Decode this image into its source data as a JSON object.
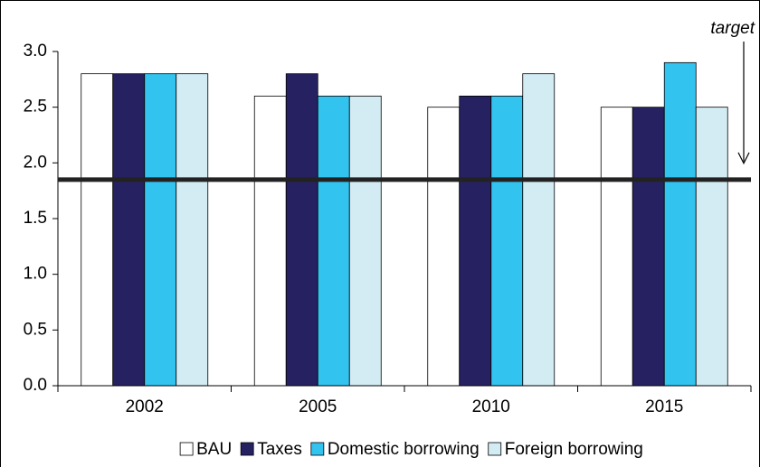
{
  "chart_data": {
    "type": "bar",
    "categories": [
      "2002",
      "2005",
      "2010",
      "2015"
    ],
    "series": [
      {
        "name": "BAU",
        "color": "#ffffff",
        "values": [
          2.8,
          2.6,
          2.5,
          2.5
        ]
      },
      {
        "name": "Taxes",
        "color": "#262262",
        "values": [
          2.8,
          2.8,
          2.6,
          2.5
        ]
      },
      {
        "name": "Domestic borrowing",
        "color": "#33c3ef",
        "values": [
          2.8,
          2.6,
          2.6,
          2.9
        ]
      },
      {
        "name": "Foreign borrowing",
        "color": "#d3ebf2",
        "values": [
          2.8,
          2.6,
          2.8,
          2.5
        ]
      }
    ],
    "ylim": [
      0,
      3.0
    ],
    "yticks": [
      {
        "value": 0,
        "label": "0.0"
      },
      {
        "value": 0.5,
        "label": "0.5"
      },
      {
        "value": 1,
        "label": "1.0"
      },
      {
        "value": 1.5,
        "label": "1.5"
      },
      {
        "value": 2,
        "label": "2.0"
      },
      {
        "value": 2.5,
        "label": "2.5"
      },
      {
        "value": 3,
        "label": "3.0"
      }
    ],
    "target": {
      "value": 1.85,
      "label": "target"
    },
    "legend": "bottom"
  }
}
